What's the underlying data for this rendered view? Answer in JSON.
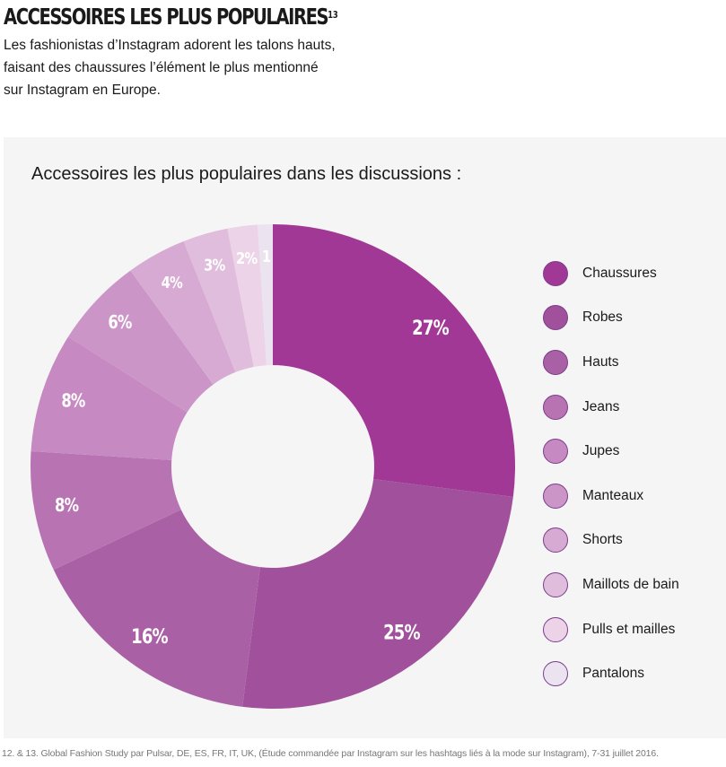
{
  "header": {
    "title": "ACCESSOIRES LES PLUS POPULAIRES",
    "title_sup": "13",
    "subtitle": "Les fashionistas d’Instagram adorent les talons hauts, faisant des chaussures l’élément le plus mentionné sur Instagram en Europe."
  },
  "footnote": "12. & 13. Global Fashion Study par Pulsar, DE, ES, FR, IT, UK, (Étude commandée par Instagram sur les hashtags liés à la mode sur Instagram), 7-31 juillet 2016.",
  "chart_data": {
    "type": "pie",
    "variant": "donut",
    "title": "Accessoires les plus populaires dans les discussions :",
    "legend_position": "right",
    "categories": [
      "Chaussures",
      "Robes",
      "Hauts",
      "Jeans",
      "Jupes",
      "Manteaux",
      "Shorts",
      "Maillots de bain",
      "Pulls et mailles",
      "Pantalons"
    ],
    "values": [
      27,
      25,
      16,
      8,
      8,
      6,
      4,
      3,
      2,
      1
    ],
    "value_labels": [
      "27%",
      "25%",
      "16%",
      "8%",
      "8%",
      "6%",
      "4%",
      "3%",
      "2%",
      "1"
    ],
    "colors": [
      "#a23896",
      "#a1519b",
      "#aa60a5",
      "#b873b3",
      "#c689c1",
      "#cc95c7",
      "#d7aad3",
      "#e0bddc",
      "#ecd3e8",
      "#ebe3f0"
    ]
  }
}
